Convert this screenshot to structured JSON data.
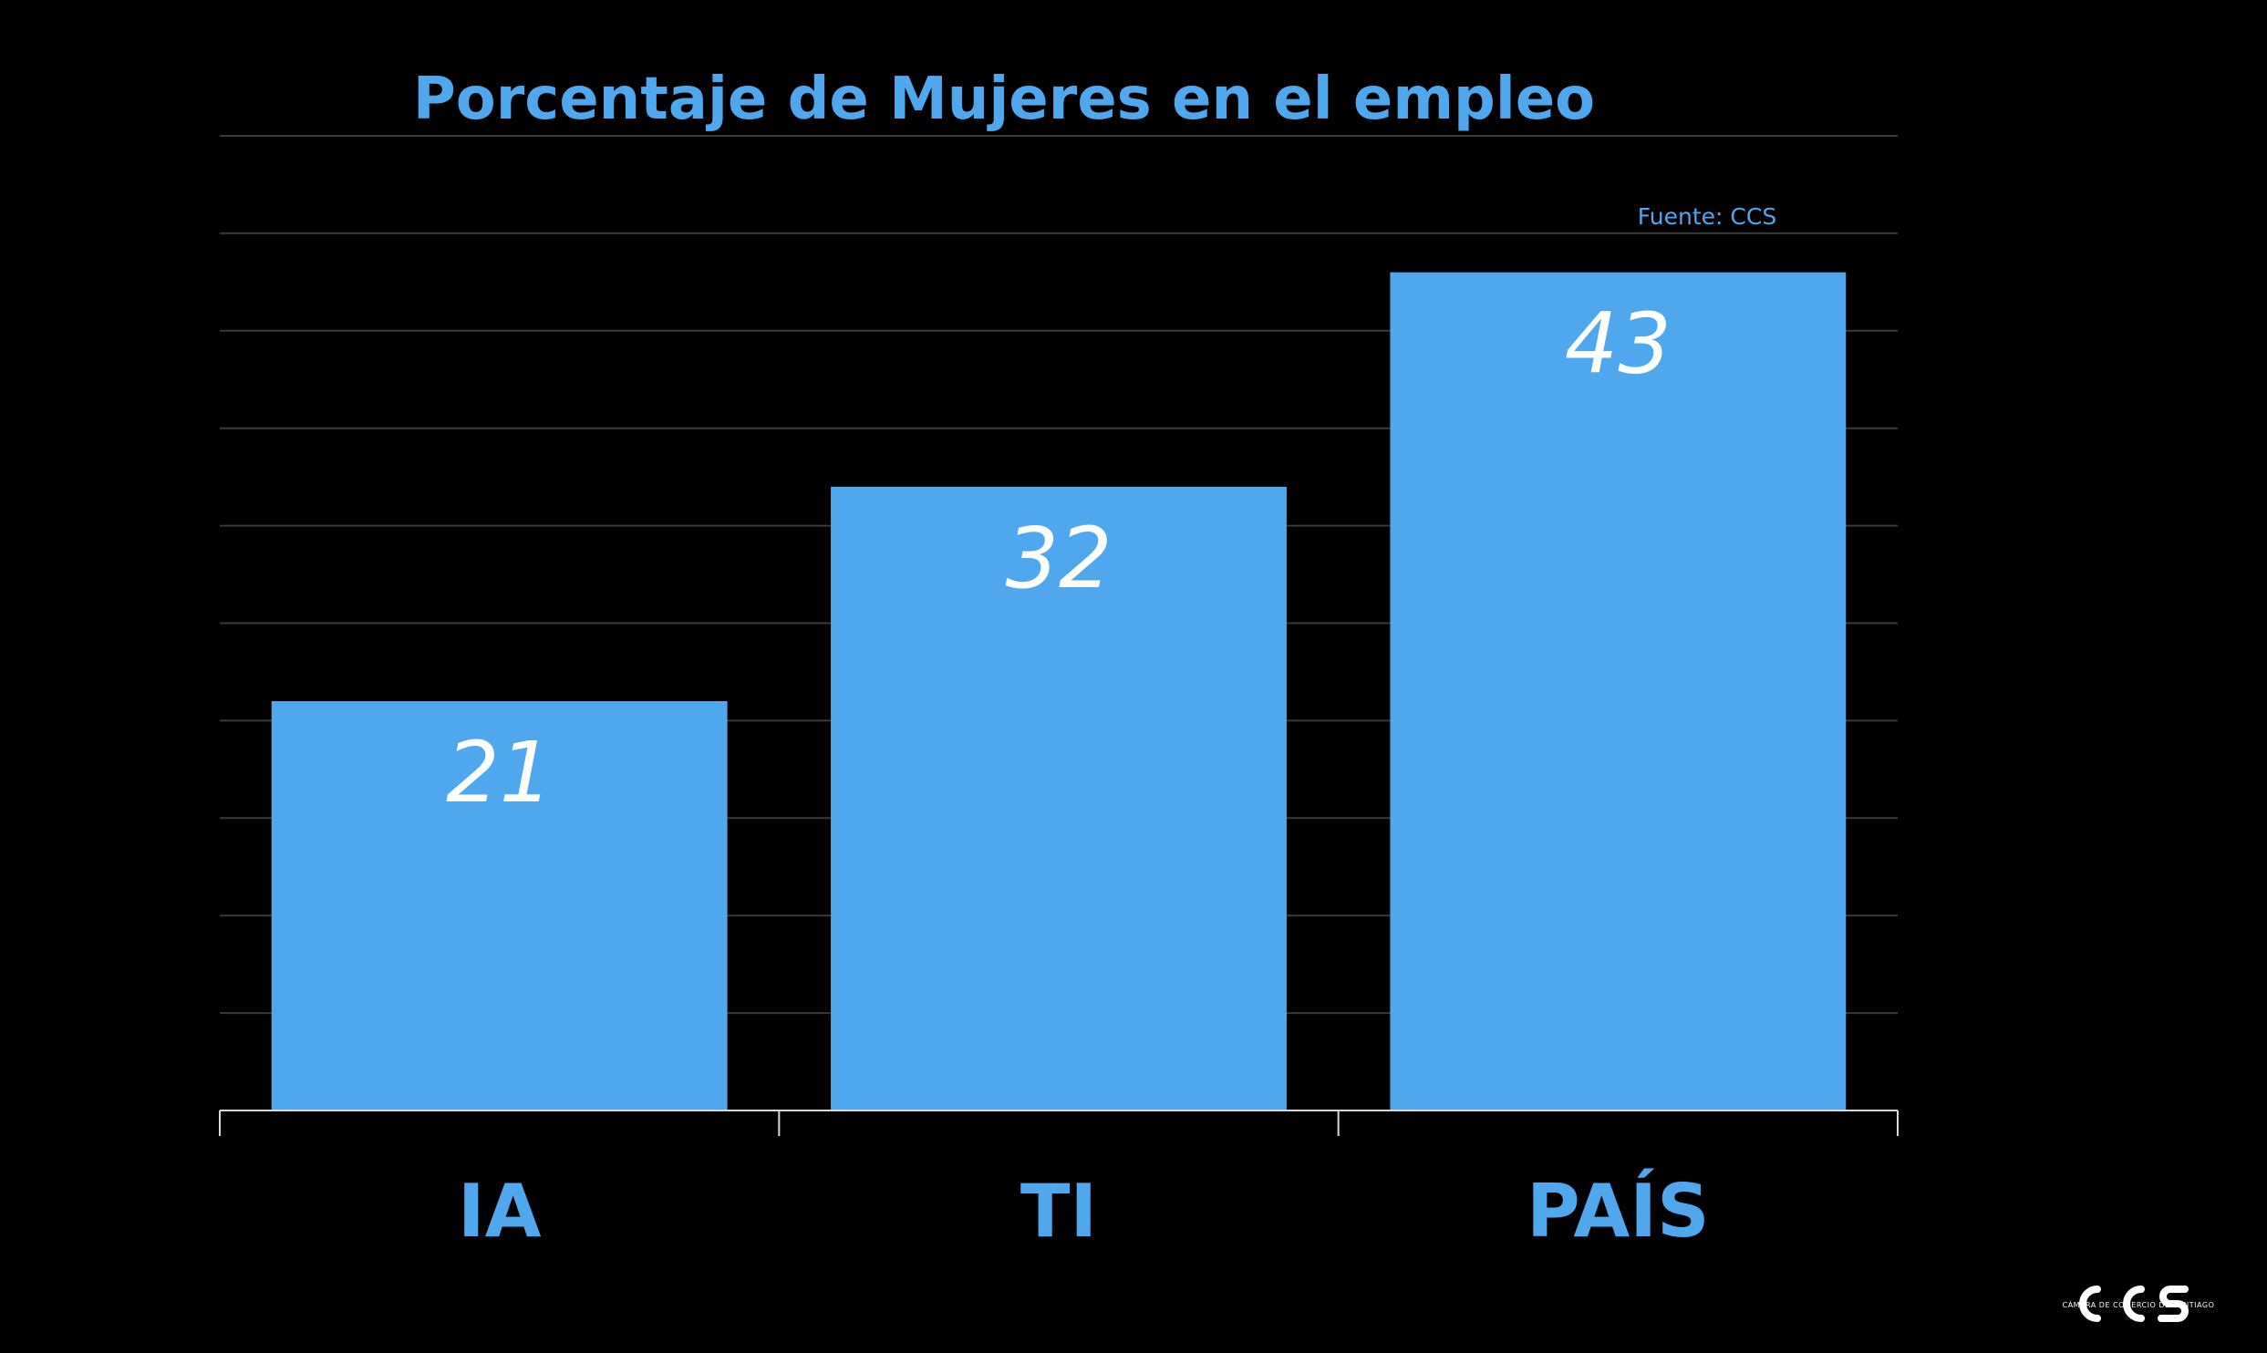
{
  "chart_data": {
    "type": "bar",
    "title": "Porcentaje de Mujeres en el empleo",
    "source": "Fuente: CCS",
    "categories": [
      "IA",
      "TI",
      "PAÍS"
    ],
    "values": [
      21,
      32,
      43
    ],
    "xlabel": "",
    "ylabel": "",
    "ylim": [
      0,
      50
    ],
    "grid": true,
    "legend": "none",
    "colors": {
      "background": "#000000",
      "bar": "#4FA8EE",
      "title": "#4FA8EE",
      "category_label": "#4FA8EE",
      "value_label": "#FFFFFF",
      "grid": "#3A3A3A",
      "axis": "#D9D9D9"
    }
  },
  "logo": {
    "icon": "ccs-logo-icon",
    "text": "CCS",
    "tagline": "CÁMARA DE COMERCIO DE SANTIAGO"
  }
}
